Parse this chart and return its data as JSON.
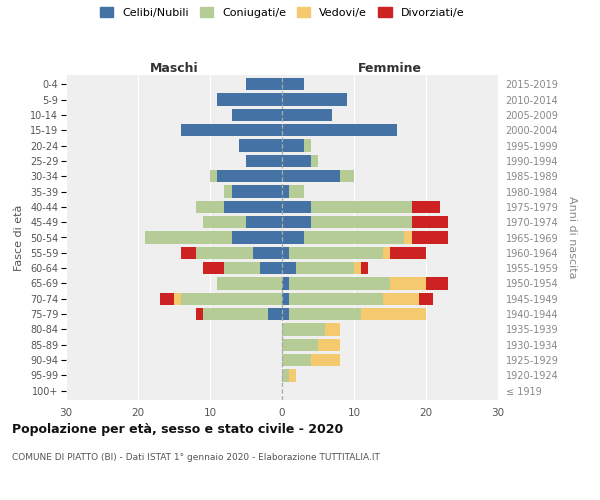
{
  "age_groups": [
    "100+",
    "95-99",
    "90-94",
    "85-89",
    "80-84",
    "75-79",
    "70-74",
    "65-69",
    "60-64",
    "55-59",
    "50-54",
    "45-49",
    "40-44",
    "35-39",
    "30-34",
    "25-29",
    "20-24",
    "15-19",
    "10-14",
    "5-9",
    "0-4"
  ],
  "birth_years": [
    "≤ 1919",
    "1920-1924",
    "1925-1929",
    "1930-1934",
    "1935-1939",
    "1940-1944",
    "1945-1949",
    "1950-1954",
    "1955-1959",
    "1960-1964",
    "1965-1969",
    "1970-1974",
    "1975-1979",
    "1980-1984",
    "1985-1989",
    "1990-1994",
    "1995-1999",
    "2000-2004",
    "2005-2009",
    "2010-2014",
    "2015-2019"
  ],
  "males": {
    "celibi": [
      0,
      0,
      0,
      0,
      0,
      2,
      0,
      0,
      3,
      4,
      7,
      5,
      8,
      7,
      9,
      5,
      6,
      14,
      7,
      9,
      5
    ],
    "coniugati": [
      0,
      0,
      0,
      0,
      0,
      9,
      14,
      9,
      5,
      8,
      12,
      6,
      4,
      1,
      1,
      0,
      0,
      0,
      0,
      0,
      0
    ],
    "vedovi": [
      0,
      0,
      0,
      0,
      0,
      0,
      1,
      0,
      0,
      0,
      0,
      0,
      0,
      0,
      0,
      0,
      0,
      0,
      0,
      0,
      0
    ],
    "divorziati": [
      0,
      0,
      0,
      0,
      0,
      1,
      2,
      0,
      3,
      2,
      0,
      0,
      0,
      0,
      0,
      0,
      0,
      0,
      0,
      0,
      0
    ]
  },
  "females": {
    "nubili": [
      0,
      0,
      0,
      0,
      0,
      1,
      1,
      1,
      2,
      1,
      3,
      4,
      4,
      1,
      8,
      4,
      3,
      16,
      7,
      9,
      3
    ],
    "coniugate": [
      0,
      1,
      4,
      5,
      6,
      10,
      13,
      14,
      8,
      13,
      14,
      14,
      14,
      2,
      2,
      1,
      1,
      0,
      0,
      0,
      0
    ],
    "vedove": [
      0,
      1,
      4,
      3,
      2,
      9,
      5,
      5,
      1,
      1,
      1,
      0,
      0,
      0,
      0,
      0,
      0,
      0,
      0,
      0,
      0
    ],
    "divorziate": [
      0,
      0,
      0,
      0,
      0,
      0,
      2,
      3,
      1,
      5,
      5,
      5,
      4,
      0,
      0,
      0,
      0,
      0,
      0,
      0,
      0
    ]
  },
  "color_celibi": "#4472a4",
  "color_coniugati": "#b5cc96",
  "color_vedovi": "#f5c96e",
  "color_divorziati": "#cc2222",
  "xlim": 30,
  "title": "Popolazione per età, sesso e stato civile - 2020",
  "subtitle": "COMUNE DI PIATTO (BI) - Dati ISTAT 1° gennaio 2020 - Elaborazione TUTTITALIA.IT",
  "ylabel_left": "Fasce di età",
  "ylabel_right": "Anni di nascita",
  "label_maschi": "Maschi",
  "label_femmine": "Femmine",
  "legend_celibi": "Celibi/Nubili",
  "legend_coniugati": "Coniugati/e",
  "legend_vedovi": "Vedovi/e",
  "legend_divorziati": "Divorziati/e",
  "bg_color": "#efefef"
}
